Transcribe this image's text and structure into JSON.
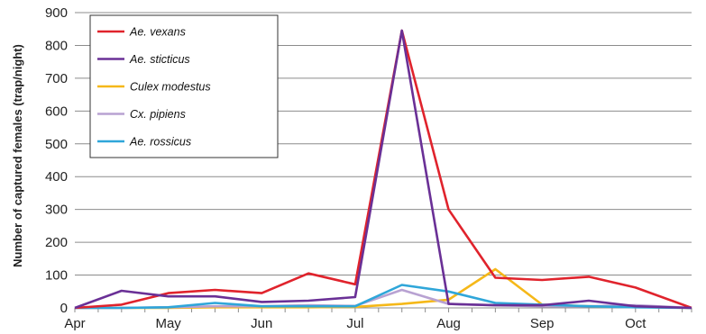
{
  "chart_data": {
    "type": "line",
    "title": "",
    "xlabel": "",
    "ylabel": "Number of captured females (trap/night)",
    "ylim": [
      0,
      900
    ],
    "yticks": [
      0,
      100,
      200,
      300,
      400,
      500,
      600,
      700,
      800,
      900
    ],
    "xlim": [
      0,
      6.6
    ],
    "xticks": [
      {
        "label": "Apr",
        "x": 0
      },
      {
        "label": "May",
        "x": 1
      },
      {
        "label": "Jun",
        "x": 2
      },
      {
        "label": "Jul",
        "x": 3
      },
      {
        "label": "Aug",
        "x": 4
      },
      {
        "label": "Sep",
        "x": 5
      },
      {
        "label": "Oct",
        "x": 6
      }
    ],
    "x": [
      0,
      0.25,
      0.5,
      0.75,
      1,
      1.25,
      1.5,
      1.75,
      2,
      2.25,
      2.5,
      2.75,
      3,
      3.25,
      3.5,
      3.75,
      4,
      4.25,
      4.5,
      4.75,
      5,
      5.25,
      5.5,
      5.75,
      6,
      6.25,
      6.5,
      6.6
    ],
    "grid": true,
    "legend_position": "top-left",
    "series": [
      {
        "name": "Ae. vexans",
        "color": "#e0232c",
        "points": [
          [
            0,
            0
          ],
          [
            0.5,
            10
          ],
          [
            1,
            45
          ],
          [
            1.5,
            55
          ],
          [
            2,
            45
          ],
          [
            2.5,
            105
          ],
          [
            3,
            72
          ],
          [
            3.5,
            845
          ],
          [
            4,
            300
          ],
          [
            4.5,
            92
          ],
          [
            5,
            85
          ],
          [
            5.5,
            95
          ],
          [
            6,
            62
          ],
          [
            6.6,
            0
          ]
        ]
      },
      {
        "name": "Ae. sticticus",
        "color": "#6a3096",
        "points": [
          [
            0,
            0
          ],
          [
            0.5,
            52
          ],
          [
            1,
            35
          ],
          [
            1.5,
            35
          ],
          [
            2,
            18
          ],
          [
            2.5,
            22
          ],
          [
            3,
            33
          ],
          [
            3.5,
            845
          ],
          [
            4,
            12
          ],
          [
            4.5,
            8
          ],
          [
            5,
            8
          ],
          [
            5.5,
            22
          ],
          [
            6,
            5
          ],
          [
            6.6,
            0
          ]
        ]
      },
      {
        "name": "Culex modestus",
        "color": "#f5b819",
        "points": [
          [
            0,
            0
          ],
          [
            0.5,
            0
          ],
          [
            1,
            0
          ],
          [
            1.5,
            2
          ],
          [
            2,
            2
          ],
          [
            2.5,
            2
          ],
          [
            3,
            3
          ],
          [
            3.5,
            12
          ],
          [
            4,
            25
          ],
          [
            4.5,
            118
          ],
          [
            5,
            10
          ],
          [
            5.5,
            5
          ],
          [
            6,
            3
          ],
          [
            6.6,
            0
          ]
        ]
      },
      {
        "name": "Cx. pipiens",
        "color": "#b8a2d2",
        "points": [
          [
            0,
            0
          ],
          [
            0.5,
            0
          ],
          [
            1,
            2
          ],
          [
            1.5,
            5
          ],
          [
            2,
            5
          ],
          [
            2.5,
            8
          ],
          [
            3,
            6
          ],
          [
            3.5,
            55
          ],
          [
            4,
            12
          ],
          [
            4.5,
            8
          ],
          [
            5,
            5
          ],
          [
            5.5,
            5
          ],
          [
            6,
            8
          ],
          [
            6.6,
            0
          ]
        ]
      },
      {
        "name": "Ae. rossicus",
        "color": "#2fa6d9",
        "points": [
          [
            0,
            0
          ],
          [
            0.5,
            0
          ],
          [
            1,
            2
          ],
          [
            1.5,
            15
          ],
          [
            2,
            5
          ],
          [
            2.5,
            5
          ],
          [
            3,
            5
          ],
          [
            3.5,
            70
          ],
          [
            4,
            50
          ],
          [
            4.5,
            15
          ],
          [
            5,
            10
          ],
          [
            5.5,
            5
          ],
          [
            6,
            2
          ],
          [
            6.6,
            0
          ]
        ]
      }
    ]
  }
}
